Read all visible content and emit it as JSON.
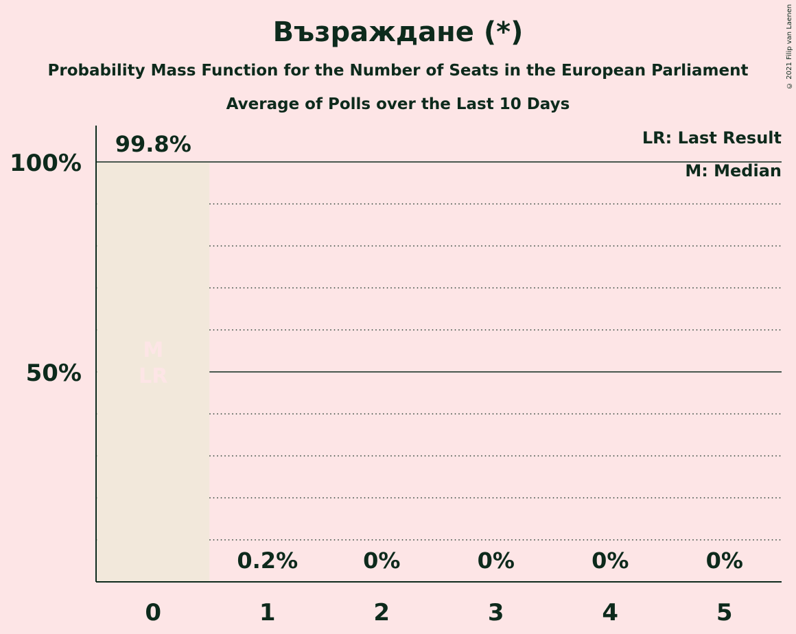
{
  "title": "Възраждане (*)",
  "subtitle": "Probability Mass Function for the Number of Seats in the European Parliament",
  "subtitle2": "Average of Polls over the Last 10 Days",
  "copyright": "© 2021 Filip van Laenen",
  "legend": {
    "last_result": "LR: Last Result",
    "median": "M: Median"
  },
  "colors": {
    "background": "#fde5e6",
    "bar": "#f2e8db",
    "text": "#0d2a1c",
    "bar_marker": "#fde5e6"
  },
  "chart_data": {
    "type": "bar",
    "categories": [
      "0",
      "1",
      "2",
      "3",
      "4",
      "5"
    ],
    "values": [
      99.8,
      0.2,
      0,
      0,
      0,
      0
    ],
    "value_labels": [
      "99.8%",
      "0.2%",
      "0%",
      "0%",
      "0%",
      "0%"
    ],
    "ylim": [
      0,
      100
    ],
    "yticks": [
      50,
      100
    ],
    "ytick_labels": [
      "50%",
      "100%"
    ],
    "median_seat": "0",
    "last_result_seat": "0",
    "marker_labels": [
      "M",
      "LR"
    ],
    "grid": "dotted every 10%, solid at 50% and 100%",
    "legend_position": "top-right"
  }
}
